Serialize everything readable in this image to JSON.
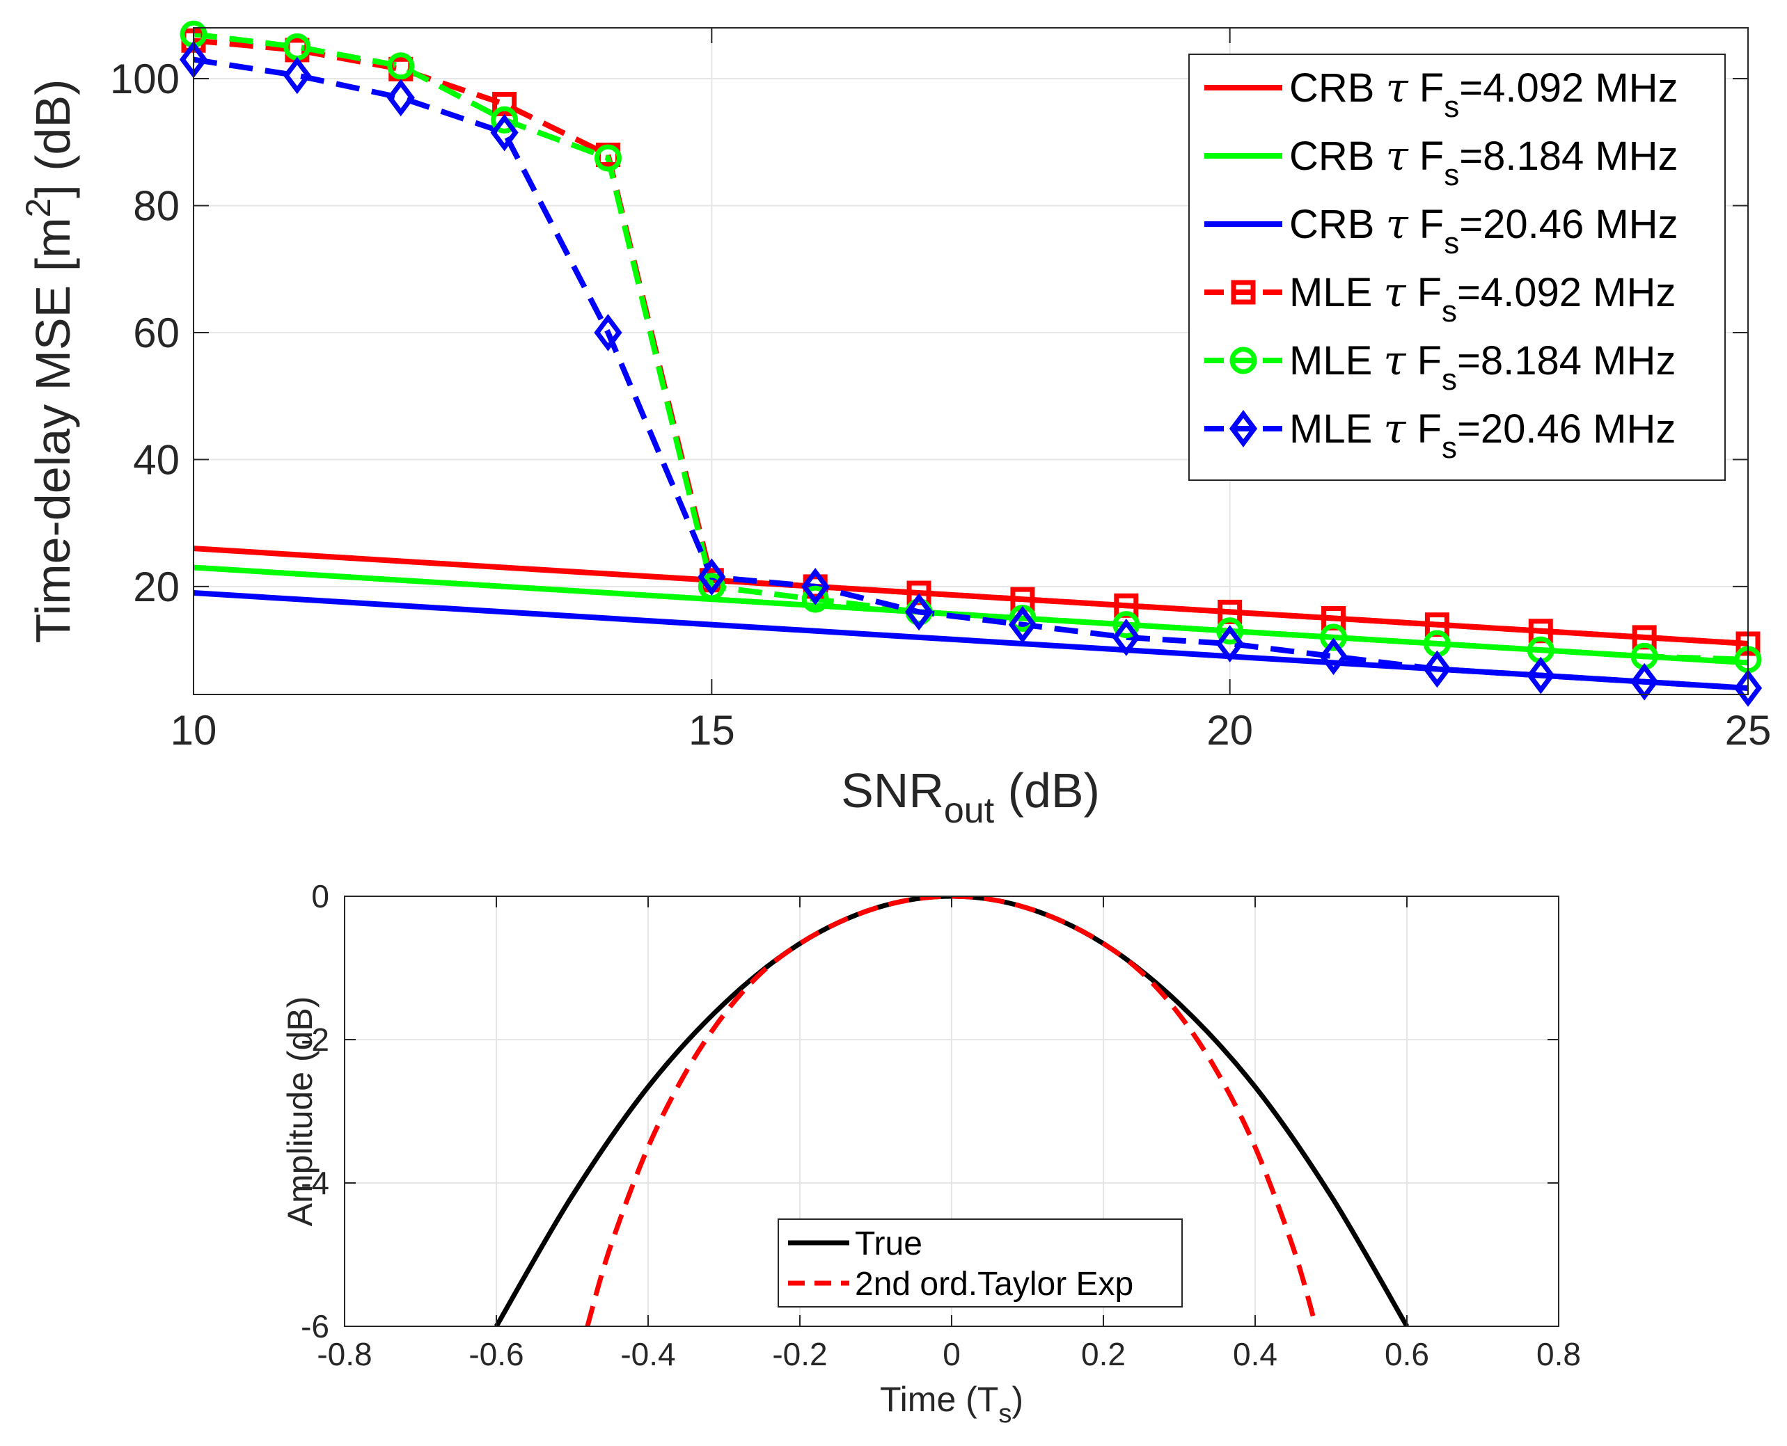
{
  "chart_data": [
    {
      "type": "line",
      "xlabel": "SNR",
      "xlabel_sub": "out",
      "xlabel_suffix": " (dB)",
      "ylabel": "Time-delay MSE [m",
      "ylabel_sup": "2",
      "ylabel_suffix": "] (dB)",
      "xlim": [
        10,
        25
      ],
      "ylim": [
        3,
        108
      ],
      "xticks": [
        10,
        15,
        20,
        25
      ],
      "yticks": [
        20,
        40,
        60,
        80,
        100
      ],
      "grid": true,
      "legend_position": "top-right",
      "series": [
        {
          "name": "CRB",
          "tau": "τ",
          "fs": "F",
          "fs_sub": "s",
          "value": "=4.092 MHz",
          "color": "#ff0000",
          "style": "solid",
          "marker": "none",
          "x": [
            10,
            25
          ],
          "y": [
            26,
            11
          ]
        },
        {
          "name": "CRB",
          "tau": "τ",
          "fs": "F",
          "fs_sub": "s",
          "value": "=8.184 MHz",
          "color": "#00ff00",
          "style": "solid",
          "marker": "none",
          "x": [
            10,
            25
          ],
          "y": [
            23,
            8
          ]
        },
        {
          "name": "CRB",
          "tau": "τ",
          "fs": "F",
          "fs_sub": "s",
          "value": "=20.46 MHz",
          "color": "#0000ff",
          "style": "solid",
          "marker": "none",
          "x": [
            10,
            25
          ],
          "y": [
            19,
            4
          ]
        },
        {
          "name": "MLE",
          "tau": "τ",
          "fs": "F",
          "fs_sub": "s",
          "value": "=4.092 MHz",
          "color": "#ff0000",
          "style": "dashed",
          "marker": "square",
          "x": [
            10,
            11,
            12,
            13,
            14,
            15,
            16,
            17,
            18,
            19,
            20,
            21,
            22,
            23,
            24,
            25
          ],
          "y": [
            106,
            104.5,
            101.5,
            96,
            88,
            21,
            20,
            19,
            18,
            17,
            16,
            15,
            14,
            13,
            12,
            11
          ]
        },
        {
          "name": "MLE",
          "tau": "τ",
          "fs": "F",
          "fs_sub": "s",
          "value": "=8.184 MHz",
          "color": "#00ff00",
          "style": "dashed",
          "marker": "circle",
          "x": [
            10,
            11,
            12,
            13,
            14,
            15,
            16,
            17,
            18,
            19,
            20,
            21,
            22,
            23,
            24,
            25
          ],
          "y": [
            107,
            105,
            102,
            93.5,
            87.5,
            20,
            18,
            16,
            15,
            14,
            13,
            12,
            11,
            10,
            9,
            8.5
          ]
        },
        {
          "name": "MLE",
          "tau": "τ",
          "fs": "F",
          "fs_sub": "s",
          "value": "=20.46 MHz",
          "color": "#0000ff",
          "style": "dashed",
          "marker": "diamond",
          "x": [
            10,
            11,
            12,
            13,
            14,
            15,
            16,
            17,
            18,
            19,
            20,
            21,
            22,
            23,
            24,
            25
          ],
          "y": [
            103,
            100.5,
            97,
            91.5,
            60,
            21.5,
            20,
            16,
            14,
            12,
            11,
            9,
            7,
            6,
            5,
            4
          ]
        }
      ]
    },
    {
      "type": "line",
      "xlabel": "Time (T",
      "xlabel_sub": "s",
      "xlabel_suffix": ")",
      "ylabel": "Amplitude (dB)",
      "xlim": [
        -0.8,
        0.8
      ],
      "ylim": [
        -6,
        0
      ],
      "xticks": [
        -0.8,
        -0.6,
        -0.4,
        -0.2,
        0,
        0.2,
        0.4,
        0.6,
        0.8
      ],
      "yticks": [
        -6,
        -4,
        -2,
        0
      ],
      "grid": true,
      "legend_position": "bottom-center",
      "series": [
        {
          "name": "True",
          "color": "#000000",
          "style": "solid",
          "x": [
            -0.6,
            -0.5,
            -0.4,
            -0.3,
            -0.2,
            -0.1,
            0,
            0.1,
            0.2,
            0.3,
            0.4,
            0.5,
            0.6
          ],
          "y": [
            -6,
            -4.18,
            -2.66,
            -1.5,
            -0.66,
            -0.165,
            0,
            -0.165,
            -0.66,
            -1.5,
            -2.66,
            -4.18,
            -6
          ]
        },
        {
          "name": "2nd ord.Taylor Exp",
          "color": "#ff0000",
          "style": "dashed",
          "x": [
            -0.48,
            -0.45,
            -0.4,
            -0.35,
            -0.3,
            -0.25,
            -0.2,
            -0.15,
            -0.1,
            -0.05,
            0,
            0.05,
            0.1,
            0.15,
            0.2,
            0.25,
            0.3,
            0.35,
            0.4,
            0.45,
            0.48
          ],
          "y": [
            -6,
            -4.9,
            -3.5,
            -2.45,
            -1.65,
            -1.06,
            -0.66,
            -0.37,
            -0.165,
            -0.041,
            0,
            -0.041,
            -0.165,
            -0.37,
            -0.66,
            -1.06,
            -1.65,
            -2.45,
            -3.5,
            -4.9,
            -6
          ]
        }
      ]
    }
  ]
}
